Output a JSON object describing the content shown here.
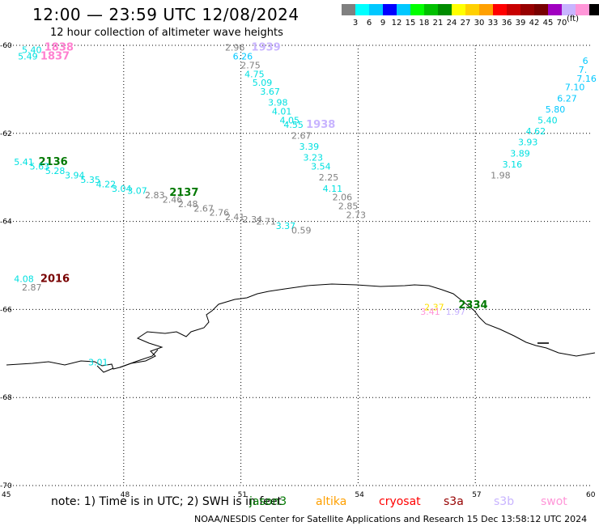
{
  "header": {
    "title": "12:00 — 23:59 UTC 12/08/2024",
    "subtitle": "12 hour collection of altimeter wave heights"
  },
  "legend": {
    "colors": [
      "#808080",
      "#00ffff",
      "#00c8ff",
      "#0000ff",
      "#00c8ff",
      "#00ff00",
      "#00c000",
      "#008c00",
      "#ffff00",
      "#ffd000",
      "#ffa000",
      "#ff0000",
      "#c80000",
      "#960000",
      "#780000",
      "#a000c0",
      "#c8b4ff",
      "#ff96d8",
      "#000000"
    ],
    "labels": [
      "3",
      "6",
      "9",
      "12",
      "15",
      "18",
      "21",
      "24",
      "27",
      "30",
      "33",
      "36",
      "39",
      "42",
      "45",
      "70"
    ],
    "unit": "(ft)"
  },
  "map": {
    "lon_ticks": [
      "45",
      "48",
      "51",
      "54",
      "57",
      "60"
    ],
    "lat_ticks": [
      "-60",
      "-62",
      "-64",
      "-66",
      "-68",
      "-70"
    ],
    "annotations": [
      {
        "text": "5.40",
        "lon": 45.6,
        "lat": -60.1,
        "color": "#00e0e0"
      },
      {
        "text": "5.49",
        "lon": 45.5,
        "lat": -60.25,
        "color": "#00e0e0"
      },
      {
        "text": "1838",
        "lon": 46.3,
        "lat": -60.05,
        "color": "#ff80d0",
        "large": true
      },
      {
        "text": "1837",
        "lon": 46.2,
        "lat": -60.25,
        "color": "#ff80d0",
        "large": true
      },
      {
        "text": "2.96",
        "lon": 50.8,
        "lat": -60.05,
        "color": "#808080"
      },
      {
        "text": "1939",
        "lon": 51.6,
        "lat": -60.05,
        "color": "#c8b4ff",
        "large": true
      },
      {
        "text": "6.26",
        "lon": 51.0,
        "lat": -60.25,
        "color": "#00c8ff"
      },
      {
        "text": "2.75",
        "lon": 51.2,
        "lat": -60.45,
        "color": "#808080"
      },
      {
        "text": "4.75",
        "lon": 51.3,
        "lat": -60.65,
        "color": "#00e0e0"
      },
      {
        "text": "5.09",
        "lon": 51.5,
        "lat": -60.85,
        "color": "#00e0e0"
      },
      {
        "text": "3.67",
        "lon": 51.7,
        "lat": -61.05,
        "color": "#00e0e0"
      },
      {
        "text": "3.98",
        "lon": 51.9,
        "lat": -61.3,
        "color": "#00e0e0"
      },
      {
        "text": "4.01",
        "lon": 52.0,
        "lat": -61.5,
        "color": "#00e0e0"
      },
      {
        "text": "4.05",
        "lon": 52.2,
        "lat": -61.7,
        "color": "#00e0e0"
      },
      {
        "text": "4.55",
        "lon": 52.3,
        "lat": -61.8,
        "color": "#00e0e0"
      },
      {
        "text": "1938",
        "lon": 53.0,
        "lat": -61.8,
        "color": "#c8b4ff",
        "large": true
      },
      {
        "text": "2.67",
        "lon": 52.5,
        "lat": -62.05,
        "color": "#808080"
      },
      {
        "text": "3.39",
        "lon": 52.7,
        "lat": -62.3,
        "color": "#00e0e0"
      },
      {
        "text": "3.23",
        "lon": 52.8,
        "lat": -62.55,
        "color": "#00e0e0"
      },
      {
        "text": "3.54",
        "lon": 53.0,
        "lat": -62.75,
        "color": "#00e0e0"
      },
      {
        "text": "2.25",
        "lon": 53.2,
        "lat": -63.0,
        "color": "#808080"
      },
      {
        "text": "4.11",
        "lon": 53.3,
        "lat": -63.25,
        "color": "#00e0e0"
      },
      {
        "text": "2.06",
        "lon": 53.55,
        "lat": -63.45,
        "color": "#808080"
      },
      {
        "text": "2.85",
        "lon": 53.7,
        "lat": -63.65,
        "color": "#808080"
      },
      {
        "text": "2.73",
        "lon": 53.9,
        "lat": -63.85,
        "color": "#808080"
      },
      {
        "text": "3.37",
        "lon": 52.1,
        "lat": -64.1,
        "color": "#00e0e0"
      },
      {
        "text": "0.59",
        "lon": 52.5,
        "lat": -64.2,
        "color": "#808080"
      },
      {
        "text": "5.41",
        "lon": 45.4,
        "lat": -62.65,
        "color": "#00e0e0"
      },
      {
        "text": "2136",
        "lon": 46.15,
        "lat": -62.65,
        "color": "#007800",
        "large": true
      },
      {
        "text": "5.63",
        "lon": 45.8,
        "lat": -62.75,
        "color": "#00e0e0"
      },
      {
        "text": "5.28",
        "lon": 46.2,
        "lat": -62.85,
        "color": "#00e0e0"
      },
      {
        "text": "3.94",
        "lon": 46.7,
        "lat": -62.95,
        "color": "#00e0e0"
      },
      {
        "text": "5.35",
        "lon": 47.1,
        "lat": -63.05,
        "color": "#00e0e0"
      },
      {
        "text": "4.22",
        "lon": 47.5,
        "lat": -63.15,
        "color": "#00e0e0"
      },
      {
        "text": "3.04",
        "lon": 47.9,
        "lat": -63.25,
        "color": "#00e0e0"
      },
      {
        "text": "3.07",
        "lon": 48.3,
        "lat": -63.3,
        "color": "#00e0e0"
      },
      {
        "text": "2.83",
        "lon": 48.75,
        "lat": -63.4,
        "color": "#808080"
      },
      {
        "text": "2137",
        "lon": 49.5,
        "lat": -63.35,
        "color": "#007800",
        "large": true
      },
      {
        "text": "2.46",
        "lon": 49.2,
        "lat": -63.5,
        "color": "#808080"
      },
      {
        "text": "2.48",
        "lon": 49.6,
        "lat": -63.6,
        "color": "#808080"
      },
      {
        "text": "2.67",
        "lon": 50.0,
        "lat": -63.7,
        "color": "#808080"
      },
      {
        "text": "2.76",
        "lon": 50.4,
        "lat": -63.8,
        "color": "#808080"
      },
      {
        "text": "2.41",
        "lon": 50.8,
        "lat": -63.9,
        "color": "#808080"
      },
      {
        "text": "2.34",
        "lon": 51.25,
        "lat": -63.95,
        "color": "#808080"
      },
      {
        "text": "2.71",
        "lon": 51.6,
        "lat": -64.0,
        "color": "#808080"
      },
      {
        "text": "4.08",
        "lon": 45.4,
        "lat": -65.3,
        "color": "#00e0e0"
      },
      {
        "text": "2016",
        "lon": 46.2,
        "lat": -65.3,
        "color": "#780000",
        "large": true
      },
      {
        "text": "2.87",
        "lon": 45.6,
        "lat": -65.5,
        "color": "#808080"
      },
      {
        "text": "3.01",
        "lon": 47.3,
        "lat": -67.2,
        "color": "#00e0e0"
      },
      {
        "text": "2.37",
        "lon": 55.9,
        "lat": -65.95,
        "color": "#ffe000"
      },
      {
        "text": "2334",
        "lon": 56.9,
        "lat": -65.9,
        "color": "#007800",
        "large": true
      },
      {
        "text": "3.41",
        "lon": 55.8,
        "lat": -66.05,
        "color": "#ff96d8"
      },
      {
        "text": "1.97",
        "lon": 56.45,
        "lat": -66.05,
        "color": "#c8b4ff"
      },
      {
        "text": "6",
        "lon": 59.95,
        "lat": -60.35,
        "color": "#00c8ff"
      },
      {
        "text": "7.",
        "lon": 59.85,
        "lat": -60.55,
        "color": "#00c8ff"
      },
      {
        "text": "7.16",
        "lon": 59.8,
        "lat": -60.75,
        "color": "#00c8ff"
      },
      {
        "text": "7.10",
        "lon": 59.5,
        "lat": -60.95,
        "color": "#00c8ff"
      },
      {
        "text": "6.27",
        "lon": 59.3,
        "lat": -61.2,
        "color": "#00c8ff"
      },
      {
        "text": "5.80",
        "lon": 59.0,
        "lat": -61.45,
        "color": "#00c8ff"
      },
      {
        "text": "5.40",
        "lon": 58.8,
        "lat": -61.7,
        "color": "#00e0e0"
      },
      {
        "text": "4.62",
        "lon": 58.5,
        "lat": -61.95,
        "color": "#00e0e0"
      },
      {
        "text": "3.93",
        "lon": 58.3,
        "lat": -62.2,
        "color": "#00e0e0"
      },
      {
        "text": "3.89",
        "lon": 58.1,
        "lat": -62.45,
        "color": "#00e0e0"
      },
      {
        "text": "3.16",
        "lon": 57.9,
        "lat": -62.7,
        "color": "#00e0e0"
      },
      {
        "text": "1.98",
        "lon": 57.6,
        "lat": -62.95,
        "color": "#808080"
      }
    ]
  },
  "note": "note:  1) Time is in UTC; 2) SWH is in feet",
  "satellites": [
    {
      "name": "jason3",
      "color": "#007800"
    },
    {
      "name": "altika",
      "color": "#ffa000"
    },
    {
      "name": "cryosat",
      "color": "#ff0000"
    },
    {
      "name": "s3a",
      "color": "#960000"
    },
    {
      "name": "s3b",
      "color": "#c8b4ff"
    },
    {
      "name": "swot",
      "color": "#ff96d8"
    }
  ],
  "footer": "NOAA/NESDIS Center for Satellite Applications and Research    15 Dec 13:58:12 UTC 2024"
}
